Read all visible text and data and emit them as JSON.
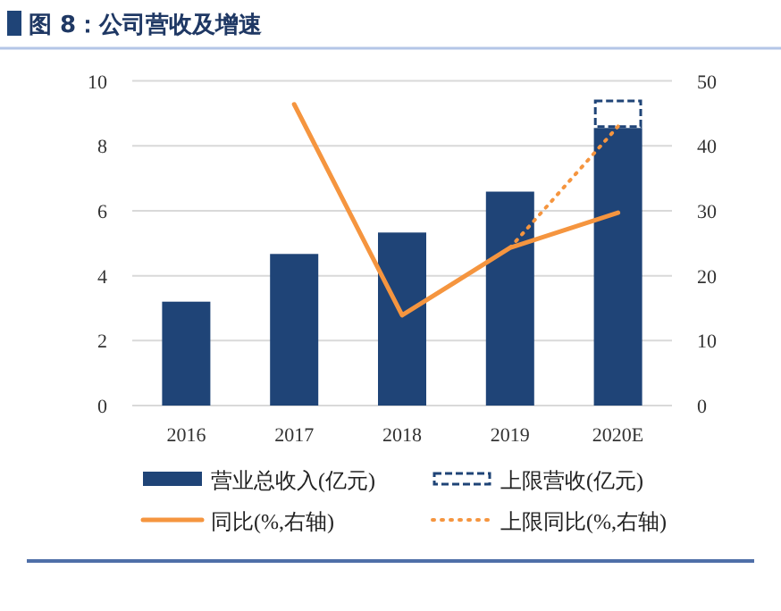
{
  "chart_data": {
    "type": "bar",
    "title": "图 8：公司营收及增速",
    "categories": [
      "2016",
      "2017",
      "2018",
      "2019",
      "2020E"
    ],
    "stacked": true,
    "series": [
      {
        "name": "营业总收入(亿元)",
        "color": "#1f4477",
        "values": [
          3.2,
          4.67,
          5.33,
          6.59,
          8.55
        ]
      },
      {
        "name": "上限营收(亿元)",
        "color": "#1f4477",
        "line_style": "dashed",
        "values": [
          null,
          null,
          null,
          null,
          0.88
        ]
      },
      {
        "name": "同比(%,右轴)",
        "type": "line",
        "axis": "y2",
        "color": "#f5953f",
        "line_style": "solid",
        "values": [
          null,
          46.4,
          13.9,
          24.3,
          29.7
        ]
      },
      {
        "name": "上限同比(%,右轴)",
        "type": "line",
        "axis": "y2",
        "color": "#f5953f",
        "line_style": "dotted",
        "values": [
          null,
          null,
          null,
          24.3,
          43.0
        ]
      }
    ],
    "ylim": [
      0,
      10
    ],
    "yticks": [
      0,
      2,
      4,
      6,
      8,
      10
    ],
    "y2lim": [
      0,
      50
    ],
    "y2ticks": [
      0,
      10,
      20,
      30,
      40,
      50
    ],
    "grid": "y",
    "legend": "bottom"
  }
}
